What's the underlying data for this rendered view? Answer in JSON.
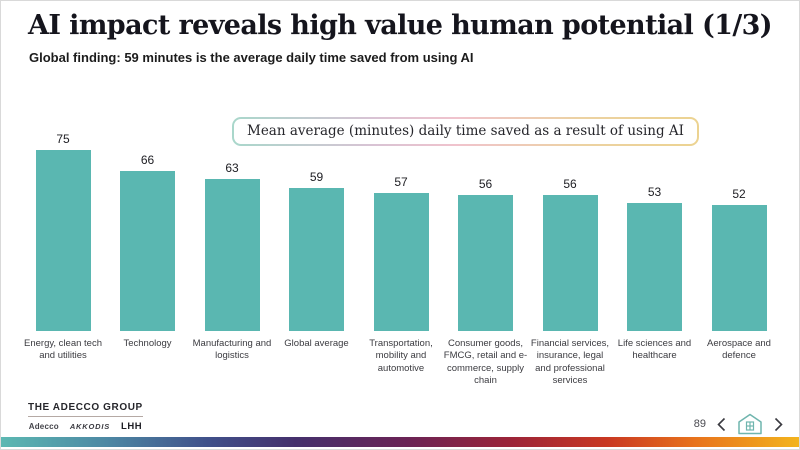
{
  "slide": {
    "title": "AI impact reveals high value human potential (1/3)",
    "subtitle": "Global finding: 59 minutes is the average daily time saved from using AI"
  },
  "chart_data": {
    "type": "bar",
    "title": "Mean average (minutes) daily time saved as a result of using AI",
    "categories": [
      "Energy, clean tech and utilities",
      "Technology",
      "Manufacturing and logistics",
      "Global average",
      "Transportation, mobility and automotive",
      "Consumer goods, FMCG, retail and e-commerce, supply chain",
      "Financial services, insurance, legal and professional services",
      "Life sciences and healthcare",
      "Aerospace and defence"
    ],
    "values": [
      75,
      66,
      63,
      59,
      57,
      56,
      56,
      53,
      52
    ],
    "xlabel": "",
    "ylabel": "",
    "ylim": [
      0,
      80
    ],
    "grid": false,
    "data_labels": true,
    "legend": false,
    "bar_color": "#5ab7b1"
  },
  "footer": {
    "group_name": "THE ADECCO GROUP",
    "brands": [
      "Adecco",
      "AKKODIS",
      "LHH"
    ],
    "page_number": "89"
  },
  "colors": {
    "bar_teal": "#5ab7b1",
    "title_text": "#15151d",
    "callout_border_left": "#a9d7cb",
    "callout_border_mid": "#f0c3cd",
    "callout_border_right": "#ecd391",
    "bottom_bar_gradient": [
      "#5cb8b2",
      "#40508a",
      "#6b2355",
      "#c93822",
      "#f3b41d"
    ]
  }
}
